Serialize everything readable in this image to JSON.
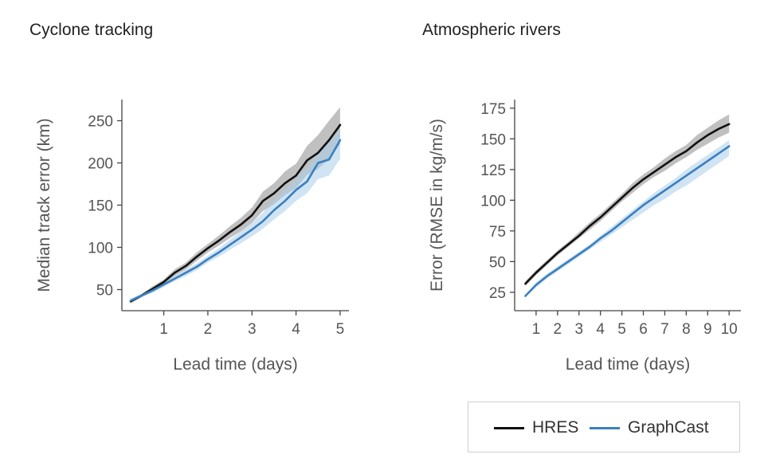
{
  "titles": {
    "left": "Cyclone tracking",
    "right": "Atmospheric rivers"
  },
  "legend": [
    {
      "name": "HRES",
      "color": "#111111"
    },
    {
      "name": "GraphCast",
      "color": "#3a7fc0"
    }
  ],
  "chart_data": [
    {
      "type": "line",
      "title": "Cyclone tracking",
      "xlabel": "Lead time (days)",
      "ylabel": "Median track error (km)",
      "xlim": [
        0.05,
        5.2
      ],
      "ylim": [
        25,
        275
      ],
      "xticks": [
        1,
        2,
        3,
        4,
        5
      ],
      "yticks": [
        50,
        100,
        150,
        200,
        250
      ],
      "x": [
        0.25,
        0.5,
        0.75,
        1.0,
        1.25,
        1.5,
        1.75,
        2.0,
        2.25,
        2.5,
        2.75,
        3.0,
        3.25,
        3.5,
        3.75,
        4.0,
        4.25,
        4.5,
        4.75,
        5.0
      ],
      "series": [
        {
          "name": "HRES",
          "color": "#111111",
          "band_color": "#8c8c8c",
          "values": [
            36,
            43,
            51,
            59,
            70,
            78,
            89,
            99,
            108,
            118,
            127,
            138,
            155,
            164,
            176,
            185,
            203,
            212,
            227,
            245
          ],
          "lower": [
            34,
            41,
            48,
            56,
            66,
            74,
            84,
            94,
            102,
            111,
            119,
            129,
            143,
            151,
            162,
            170,
            186,
            193,
            205,
            222
          ],
          "upper": [
            38,
            45,
            54,
            62,
            74,
            82,
            94,
            104,
            114,
            125,
            135,
            147,
            166,
            176,
            190,
            199,
            220,
            233,
            250,
            266
          ]
        },
        {
          "name": "GraphCast",
          "color": "#3a7fc0",
          "band_color": "#a9cde9",
          "values": [
            37,
            43,
            49,
            56,
            63,
            70,
            77,
            86,
            94,
            103,
            112,
            121,
            131,
            144,
            155,
            168,
            178,
            200,
            204,
            227
          ],
          "lower": [
            35,
            41,
            46,
            53,
            60,
            66,
            73,
            82,
            89,
            97,
            105,
            113,
            122,
            133,
            143,
            155,
            164,
            181,
            185,
            205
          ],
          "upper": [
            39,
            45,
            52,
            59,
            66,
            74,
            81,
            90,
            99,
            109,
            119,
            129,
            141,
            156,
            168,
            182,
            194,
            214,
            225,
            240
          ]
        }
      ]
    },
    {
      "type": "line",
      "title": "Atmospheric rivers",
      "xlabel": "Lead time (days)",
      "ylabel": "Error (RMSE in kg/m/s)",
      "xlim": [
        0.0,
        10.55
      ],
      "ylim": [
        10,
        182
      ],
      "xticks": [
        1,
        2,
        3,
        4,
        5,
        6,
        7,
        8,
        9,
        10
      ],
      "yticks": [
        25,
        50,
        75,
        100,
        125,
        150,
        175
      ],
      "x": [
        0.5,
        1.0,
        1.5,
        2.0,
        2.5,
        3.0,
        3.5,
        4.0,
        4.5,
        5.0,
        5.5,
        6.0,
        6.5,
        7.0,
        7.5,
        8.0,
        8.5,
        9.0,
        9.5,
        10.0
      ],
      "series": [
        {
          "name": "HRES",
          "color": "#111111",
          "band_color": "#8c8c8c",
          "values": [
            32,
            41,
            49,
            57,
            64,
            71,
            79,
            86,
            94,
            102,
            110,
            117,
            123,
            129,
            135,
            140,
            147,
            153,
            158,
            162
          ],
          "lower": [
            30,
            39,
            47,
            55,
            62,
            69,
            76,
            83,
            91,
            99,
            106,
            113,
            119,
            124,
            130,
            135,
            141,
            146,
            151,
            155
          ],
          "upper": [
            34,
            43,
            51,
            59,
            66,
            74,
            82,
            89,
            97,
            105,
            114,
            121,
            127,
            134,
            140,
            145,
            153,
            159,
            165,
            170
          ]
        },
        {
          "name": "GraphCast",
          "color": "#3a7fc0",
          "band_color": "#a9cde9",
          "values": [
            22,
            31,
            38,
            44,
            50,
            56,
            62,
            69,
            75,
            82,
            89,
            96,
            102,
            108,
            114,
            120,
            126,
            132,
            138,
            144
          ],
          "lower": [
            21,
            29,
            36,
            42,
            48,
            54,
            60,
            66,
            72,
            78,
            84,
            90,
            96,
            101,
            107,
            112,
            118,
            124,
            130,
            136
          ],
          "upper": [
            23,
            33,
            40,
            46,
            52,
            58,
            64,
            71,
            78,
            85,
            92,
            99,
            106,
            112,
            118,
            125,
            131,
            137,
            143,
            149
          ]
        }
      ]
    }
  ]
}
